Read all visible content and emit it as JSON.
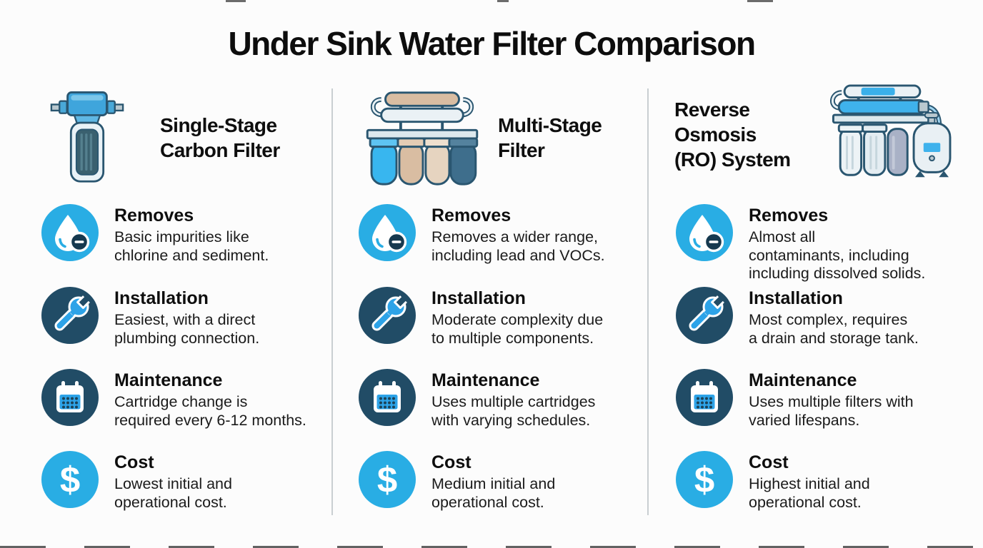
{
  "title": "Under Sink Water Filter Comparison",
  "colors": {
    "accent_blue": "#29ADE4",
    "icon_navy": "#214C66",
    "badge_navy": "#16394F",
    "outline_navy": "#2A5670",
    "divider_gray": "#C9CFD2",
    "text_black": "#111111",
    "background": "#FCFCFC"
  },
  "columns": [
    {
      "id": "single-stage-carbon-filter",
      "title_lines": [
        "Single-Stage",
        "Carbon Filter"
      ],
      "header_icon": "single-stage-filter-icon",
      "rows": [
        {
          "icon": "water-drop-minus-icon",
          "label": "Removes",
          "lines": [
            "Basic impurities like",
            "chlorine and sediment."
          ]
        },
        {
          "icon": "wrench-icon",
          "label": "Installation",
          "lines": [
            "Easiest, with a direct",
            "plumbing connection."
          ]
        },
        {
          "icon": "calendar-icon",
          "label": "Maintenance",
          "lines": [
            "Cartridge change is",
            "required every 6-12 months."
          ]
        },
        {
          "icon": "dollar-icon",
          "label": "Cost",
          "lines": [
            "Lowest initial and",
            "operational cost."
          ]
        }
      ]
    },
    {
      "id": "multi-stage-filter",
      "title_lines": [
        "Multi-Stage",
        "Filter"
      ],
      "header_icon": "multi-stage-filter-icon",
      "rows": [
        {
          "icon": "water-drop-minus-icon",
          "label": "Removes",
          "lines": [
            "Removes a wider range,",
            "including lead and VOCs."
          ]
        },
        {
          "icon": "wrench-icon",
          "label": "Installation",
          "lines": [
            "Moderate complexity due",
            "to multiple components."
          ]
        },
        {
          "icon": "calendar-icon",
          "label": "Maintenance",
          "lines": [
            "Uses multiple cartridges",
            "with varying schedules."
          ]
        },
        {
          "icon": "dollar-icon",
          "label": "Cost",
          "lines": [
            "Medium initial and",
            "operational cost."
          ]
        }
      ]
    },
    {
      "id": "reverse-osmosis-system",
      "title_lines": [
        "Reverse",
        "Osmosis",
        "(RO) System"
      ],
      "header_icon": "reverse-osmosis-system-icon",
      "rows": [
        {
          "icon": "water-drop-minus-icon",
          "label": "Removes",
          "lines": [
            "Almost all",
            "contaminants, including",
            "including dissolved solids."
          ]
        },
        {
          "icon": "wrench-icon",
          "label": "Installation",
          "lines": [
            "Most complex, requires",
            "a drain and storage tank."
          ]
        },
        {
          "icon": "calendar-icon",
          "label": "Maintenance",
          "lines": [
            "Uses multiple filters with",
            "varied lifespans."
          ]
        },
        {
          "icon": "dollar-icon",
          "label": "Cost",
          "lines": [
            "Highest initial and",
            "operational cost."
          ]
        }
      ]
    }
  ]
}
